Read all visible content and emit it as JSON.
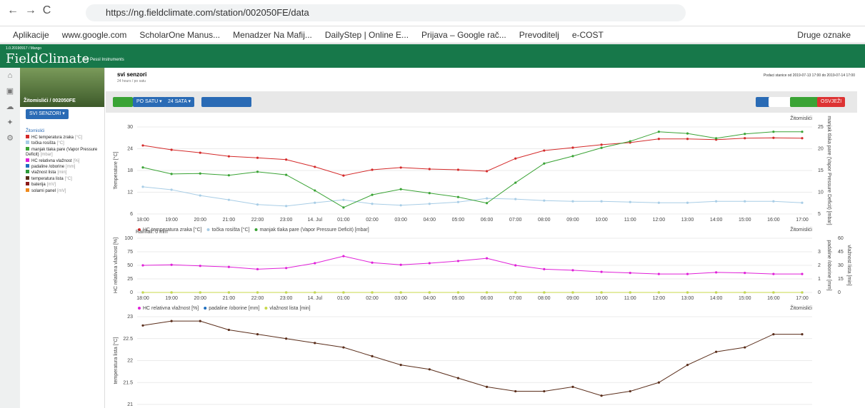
{
  "browser": {
    "url": "https://ng.fieldclimate.com/station/002050FE/data",
    "bookmarks": [
      "Aplikacije",
      "www.google.com",
      "ScholarOne Manus...",
      "Menadzer Na Mafij...",
      "DailyStep | Online E...",
      "Prijava – Google rač...",
      "Prevoditelj",
      "e-COST"
    ],
    "other_bookmarks": "Druge oznake"
  },
  "app": {
    "version": "1.0.20190917 / Mango",
    "logo": "FieldClimate",
    "logo_sub": "by Pessl Instruments"
  },
  "sidebar": {
    "station": "Žitomislići / 002050FE",
    "sensor_button": "SVI SENZORI ▾",
    "tree_root": "Žitomislići",
    "sensors": [
      {
        "name": "HC temperatura zraka",
        "unit": "[°C]",
        "color": "#d42a2a"
      },
      {
        "name": "točka rosišta",
        "unit": "[°C]",
        "color": "#a8cde6"
      },
      {
        "name": "manjak tlaka pare (Vapor Pressure Deficit)",
        "unit": "[mbar]",
        "color": "#3aa335"
      },
      {
        "name": "HC relativna vlažnost",
        "unit": "[%]",
        "color": "#e020d8"
      },
      {
        "name": "padaline /oborine",
        "unit": "[mm]",
        "color": "#1f6fbf"
      },
      {
        "name": "vlažnost lista",
        "unit": "[min]",
        "color": "#2e9b3a"
      },
      {
        "name": "temperatura lista",
        "unit": "[°C]",
        "color": "#5a2d1a"
      },
      {
        "name": "baterija",
        "unit": "[mV]",
        "color": "#8b1a1a"
      },
      {
        "name": "solarni panel",
        "unit": "[mV]",
        "color": "#f08a1c"
      }
    ]
  },
  "page": {
    "title": "svi senzori",
    "subtitle": "24 hours / po satu",
    "period": "Podaci stanice od 2019-07-13 17:00 do 2019-07-14 17:00"
  },
  "toolbar": {
    "interval": "PO SATU ▾",
    "range": "24 SATA ▾",
    "refresh": "OSVJEŽI"
  },
  "chart_data": [
    {
      "type": "line",
      "station_label": "Žitomislići",
      "grid": true,
      "categories": [
        "18:00",
        "19:00",
        "20:00",
        "21:00",
        "22:00",
        "23:00",
        "14. Jul",
        "01:00",
        "02:00",
        "03:00",
        "04:00",
        "05:00",
        "06:00",
        "07:00",
        "08:00",
        "09:00",
        "10:00",
        "11:00",
        "12:00",
        "13:00",
        "14:00",
        "15:00",
        "16:00",
        "17:00"
      ],
      "ylabel": "Temperature [°C]",
      "ylim": [
        6,
        30
      ],
      "yticks": [
        6,
        12,
        18,
        24,
        30
      ],
      "y2label": "manjak tlaka pare (Vapor Pressure Deficit) [mbar]",
      "y2lim": [
        5,
        25
      ],
      "y2ticks": [
        5,
        10,
        15,
        20,
        25
      ],
      "series": [
        {
          "name": "HC temperatura zraka [°C]",
          "color": "#d42a2a",
          "values": [
            24.9,
            23.7,
            22.9,
            21.9,
            21.5,
            21,
            19,
            16.6,
            18.2,
            18.8,
            18.4,
            18.2,
            17.8,
            21.3,
            23.5,
            24.3,
            25.1,
            25.7,
            26.7,
            26.7,
            26.5,
            26.9,
            27,
            26.9
          ]
        },
        {
          "name": "točka rosišta [°C]",
          "color": "#a8cde6",
          "values": [
            13.5,
            12.7,
            11.1,
            9.9,
            8.6,
            8.2,
            9.1,
            9.9,
            8.8,
            8.4,
            8.8,
            9.3,
            10.3,
            10.1,
            9.7,
            9.5,
            9.5,
            9.3,
            9.1,
            9.1,
            9.5,
            9.5,
            9.5,
            9.1
          ]
        },
        {
          "name": "manjak tlaka pare (Vapor Pressure Deficit) [mbar]",
          "color": "#3aa335",
          "axis": "y2",
          "values": [
            15.7,
            14.2,
            14.3,
            13.9,
            14.7,
            14,
            10.4,
            6.5,
            9.4,
            10.7,
            9.8,
            8.9,
            7.5,
            12.2,
            16.6,
            18.3,
            20.2,
            21.7,
            23.9,
            23.5,
            22.4,
            23.4,
            23.9,
            23.9
          ]
        }
      ]
    },
    {
      "type": "line",
      "station_label": "Žitomislići",
      "grid": true,
      "annotation": "Rainfall: 0 mm",
      "categories": [
        "18:00",
        "19:00",
        "20:00",
        "21:00",
        "22:00",
        "23:00",
        "14. Jul",
        "01:00",
        "02:00",
        "03:00",
        "04:00",
        "05:00",
        "06:00",
        "07:00",
        "08:00",
        "09:00",
        "10:00",
        "11:00",
        "12:00",
        "13:00",
        "14:00",
        "15:00",
        "16:00",
        "17:00"
      ],
      "ylabel": "HC relativna vlažnost [%]",
      "ylim": [
        0,
        100
      ],
      "yticks": [
        0,
        25,
        50,
        75,
        100
      ],
      "y2label": "padaline /oborine [mm]",
      "y2lim": [
        0,
        4
      ],
      "y2ticks": [
        0,
        1,
        2,
        3
      ],
      "y3label": "vlažnost lista [min]",
      "y3lim": [
        0,
        60
      ],
      "y3ticks": [
        0,
        15,
        30,
        45,
        60
      ],
      "series": [
        {
          "name": "HC relativna vlažnost [%]",
          "color": "#e020d8",
          "values": [
            50,
            51,
            49,
            47,
            43,
            45,
            54,
            67,
            55,
            51,
            54,
            58,
            63,
            50,
            43,
            41,
            38,
            36,
            34,
            34,
            37,
            36,
            34,
            34
          ]
        },
        {
          "name": "padaline /oborine [mm]",
          "color": "#1f6fbf",
          "axis": "y2",
          "values": [
            0,
            0,
            0,
            0,
            0,
            0,
            0,
            0,
            0,
            0,
            0,
            0,
            0,
            0,
            0,
            0,
            0,
            0,
            0,
            0,
            0,
            0,
            0,
            0
          ]
        },
        {
          "name": "vlažnost lista [min]",
          "color": "#c8d94a",
          "axis": "y3",
          "values": [
            0,
            0,
            0,
            0,
            0,
            0,
            0,
            0,
            0,
            0,
            0,
            0,
            0,
            0,
            0,
            0,
            0,
            0,
            0,
            0,
            0,
            0,
            0,
            0
          ]
        }
      ]
    },
    {
      "type": "line",
      "station_label": "Žitomislići",
      "grid": true,
      "ylabel": "temperatura lista [°C]",
      "ylim": [
        21,
        23
      ],
      "yticks": [
        21,
        21.5,
        22,
        22.5,
        23
      ],
      "series": [
        {
          "color": "#5a2d1a",
          "values": [
            22.8,
            22.9,
            22.9,
            22.7,
            22.6,
            22.5,
            22.4,
            22.3,
            22.1,
            21.9,
            21.8,
            21.6,
            21.4,
            21.3,
            21.3,
            21.4,
            21.2,
            21.3,
            21.5,
            21.9,
            22.2,
            22.3,
            22.6,
            22.6
          ]
        }
      ]
    }
  ]
}
